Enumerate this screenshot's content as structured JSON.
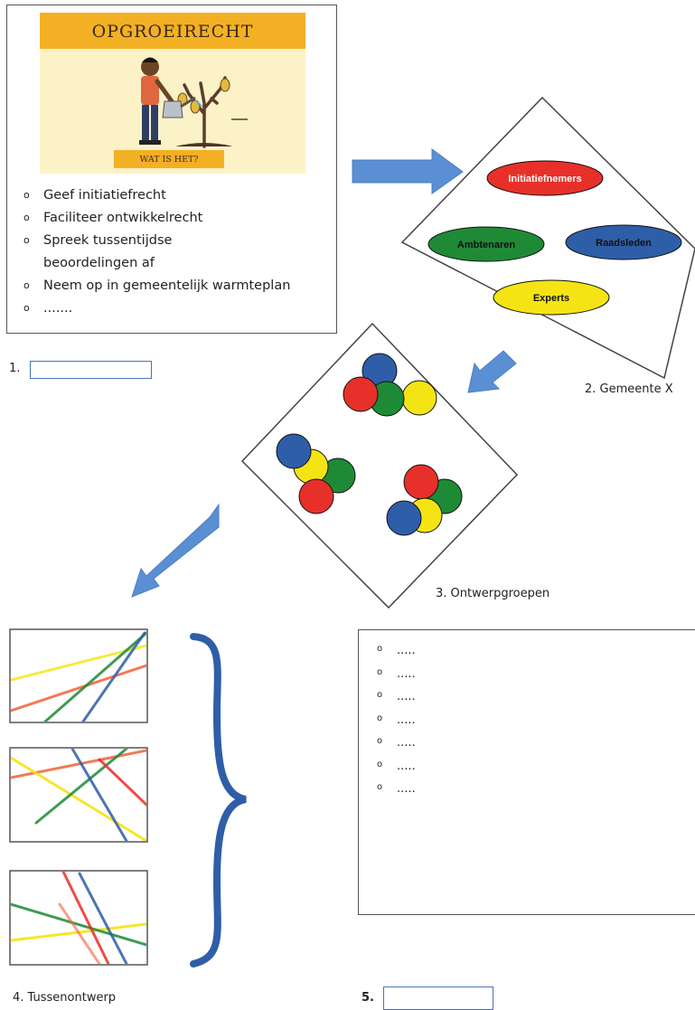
{
  "poster": {
    "title": "OPGROEIRECHT",
    "subtitle": "WAT IS HET?"
  },
  "step1": {
    "bullets": [
      "Geef initiatiefrecht",
      "Faciliteer ontwikkelrecht",
      "Spreek tussentijdse",
      "beoordelingen af",
      "Neem op in gemeentelijk warmteplan",
      "......."
    ],
    "label": "1.",
    "input_value": ""
  },
  "step2": {
    "label": "2. Gemeente X",
    "roles": [
      {
        "name": "Initiatiefnemers",
        "color": "#e8302a",
        "text_color": "#ffffff"
      },
      {
        "name": "Ambtenaren",
        "color": "#1f8a36",
        "text_color": "#111111"
      },
      {
        "name": "Raadsleden",
        "color": "#2f5ea8",
        "text_color": "#111111"
      },
      {
        "name": "Experts",
        "color": "#f5e414",
        "text_color": "#111111"
      }
    ]
  },
  "step3": {
    "label": "3. Ontwerpgroepen"
  },
  "step4": {
    "label": "4. Tussenontwerp"
  },
  "step5": {
    "items": [
      ".....",
      ".....",
      ".....",
      ".....",
      ".....",
      ".....",
      "....."
    ],
    "label": "5.",
    "input_value": ""
  },
  "colors": {
    "arrow": "#5b8fd4",
    "brace": "#2f5ea8",
    "red": "#e8302a",
    "green": "#1f8a36",
    "blue": "#2f5ea8",
    "yellow": "#f5e414",
    "orange": "#f0623a",
    "poster_band": "#f4b024"
  }
}
